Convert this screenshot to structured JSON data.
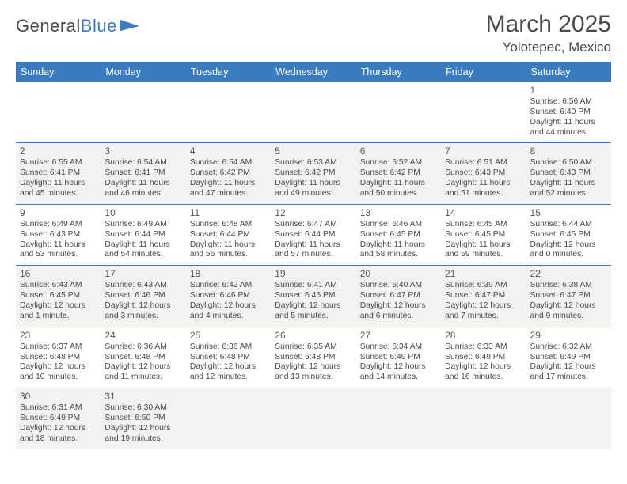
{
  "logo": {
    "general": "General",
    "blue": "Blue"
  },
  "title": "March 2025",
  "location": "Yolotepec, Mexico",
  "colors": {
    "header_bg": "#3b7bbf",
    "header_fg": "#ffffff",
    "row_alt": "#f2f2f2",
    "border": "#3b7bbf",
    "text": "#4a4a4a"
  },
  "weekdays": [
    "Sunday",
    "Monday",
    "Tuesday",
    "Wednesday",
    "Thursday",
    "Friday",
    "Saturday"
  ],
  "weeks": [
    [
      null,
      null,
      null,
      null,
      null,
      null,
      {
        "n": "1",
        "sr": "Sunrise: 6:56 AM",
        "ss": "Sunset: 6:40 PM",
        "dl": "Daylight: 11 hours and 44 minutes."
      }
    ],
    [
      {
        "n": "2",
        "sr": "Sunrise: 6:55 AM",
        "ss": "Sunset: 6:41 PM",
        "dl": "Daylight: 11 hours and 45 minutes."
      },
      {
        "n": "3",
        "sr": "Sunrise: 6:54 AM",
        "ss": "Sunset: 6:41 PM",
        "dl": "Daylight: 11 hours and 46 minutes."
      },
      {
        "n": "4",
        "sr": "Sunrise: 6:54 AM",
        "ss": "Sunset: 6:42 PM",
        "dl": "Daylight: 11 hours and 47 minutes."
      },
      {
        "n": "5",
        "sr": "Sunrise: 6:53 AM",
        "ss": "Sunset: 6:42 PM",
        "dl": "Daylight: 11 hours and 49 minutes."
      },
      {
        "n": "6",
        "sr": "Sunrise: 6:52 AM",
        "ss": "Sunset: 6:42 PM",
        "dl": "Daylight: 11 hours and 50 minutes."
      },
      {
        "n": "7",
        "sr": "Sunrise: 6:51 AM",
        "ss": "Sunset: 6:43 PM",
        "dl": "Daylight: 11 hours and 51 minutes."
      },
      {
        "n": "8",
        "sr": "Sunrise: 6:50 AM",
        "ss": "Sunset: 6:43 PM",
        "dl": "Daylight: 11 hours and 52 minutes."
      }
    ],
    [
      {
        "n": "9",
        "sr": "Sunrise: 6:49 AM",
        "ss": "Sunset: 6:43 PM",
        "dl": "Daylight: 11 hours and 53 minutes."
      },
      {
        "n": "10",
        "sr": "Sunrise: 6:49 AM",
        "ss": "Sunset: 6:44 PM",
        "dl": "Daylight: 11 hours and 54 minutes."
      },
      {
        "n": "11",
        "sr": "Sunrise: 6:48 AM",
        "ss": "Sunset: 6:44 PM",
        "dl": "Daylight: 11 hours and 56 minutes."
      },
      {
        "n": "12",
        "sr": "Sunrise: 6:47 AM",
        "ss": "Sunset: 6:44 PM",
        "dl": "Daylight: 11 hours and 57 minutes."
      },
      {
        "n": "13",
        "sr": "Sunrise: 6:46 AM",
        "ss": "Sunset: 6:45 PM",
        "dl": "Daylight: 11 hours and 58 minutes."
      },
      {
        "n": "14",
        "sr": "Sunrise: 6:45 AM",
        "ss": "Sunset: 6:45 PM",
        "dl": "Daylight: 11 hours and 59 minutes."
      },
      {
        "n": "15",
        "sr": "Sunrise: 6:44 AM",
        "ss": "Sunset: 6:45 PM",
        "dl": "Daylight: 12 hours and 0 minutes."
      }
    ],
    [
      {
        "n": "16",
        "sr": "Sunrise: 6:43 AM",
        "ss": "Sunset: 6:45 PM",
        "dl": "Daylight: 12 hours and 1 minute."
      },
      {
        "n": "17",
        "sr": "Sunrise: 6:43 AM",
        "ss": "Sunset: 6:46 PM",
        "dl": "Daylight: 12 hours and 3 minutes."
      },
      {
        "n": "18",
        "sr": "Sunrise: 6:42 AM",
        "ss": "Sunset: 6:46 PM",
        "dl": "Daylight: 12 hours and 4 minutes."
      },
      {
        "n": "19",
        "sr": "Sunrise: 6:41 AM",
        "ss": "Sunset: 6:46 PM",
        "dl": "Daylight: 12 hours and 5 minutes."
      },
      {
        "n": "20",
        "sr": "Sunrise: 6:40 AM",
        "ss": "Sunset: 6:47 PM",
        "dl": "Daylight: 12 hours and 6 minutes."
      },
      {
        "n": "21",
        "sr": "Sunrise: 6:39 AM",
        "ss": "Sunset: 6:47 PM",
        "dl": "Daylight: 12 hours and 7 minutes."
      },
      {
        "n": "22",
        "sr": "Sunrise: 6:38 AM",
        "ss": "Sunset: 6:47 PM",
        "dl": "Daylight: 12 hours and 9 minutes."
      }
    ],
    [
      {
        "n": "23",
        "sr": "Sunrise: 6:37 AM",
        "ss": "Sunset: 6:48 PM",
        "dl": "Daylight: 12 hours and 10 minutes."
      },
      {
        "n": "24",
        "sr": "Sunrise: 6:36 AM",
        "ss": "Sunset: 6:48 PM",
        "dl": "Daylight: 12 hours and 11 minutes."
      },
      {
        "n": "25",
        "sr": "Sunrise: 6:36 AM",
        "ss": "Sunset: 6:48 PM",
        "dl": "Daylight: 12 hours and 12 minutes."
      },
      {
        "n": "26",
        "sr": "Sunrise: 6:35 AM",
        "ss": "Sunset: 6:48 PM",
        "dl": "Daylight: 12 hours and 13 minutes."
      },
      {
        "n": "27",
        "sr": "Sunrise: 6:34 AM",
        "ss": "Sunset: 6:49 PM",
        "dl": "Daylight: 12 hours and 14 minutes."
      },
      {
        "n": "28",
        "sr": "Sunrise: 6:33 AM",
        "ss": "Sunset: 6:49 PM",
        "dl": "Daylight: 12 hours and 16 minutes."
      },
      {
        "n": "29",
        "sr": "Sunrise: 6:32 AM",
        "ss": "Sunset: 6:49 PM",
        "dl": "Daylight: 12 hours and 17 minutes."
      }
    ],
    [
      {
        "n": "30",
        "sr": "Sunrise: 6:31 AM",
        "ss": "Sunset: 6:49 PM",
        "dl": "Daylight: 12 hours and 18 minutes."
      },
      {
        "n": "31",
        "sr": "Sunrise: 6:30 AM",
        "ss": "Sunset: 6:50 PM",
        "dl": "Daylight: 12 hours and 19 minutes."
      },
      null,
      null,
      null,
      null,
      null
    ]
  ]
}
